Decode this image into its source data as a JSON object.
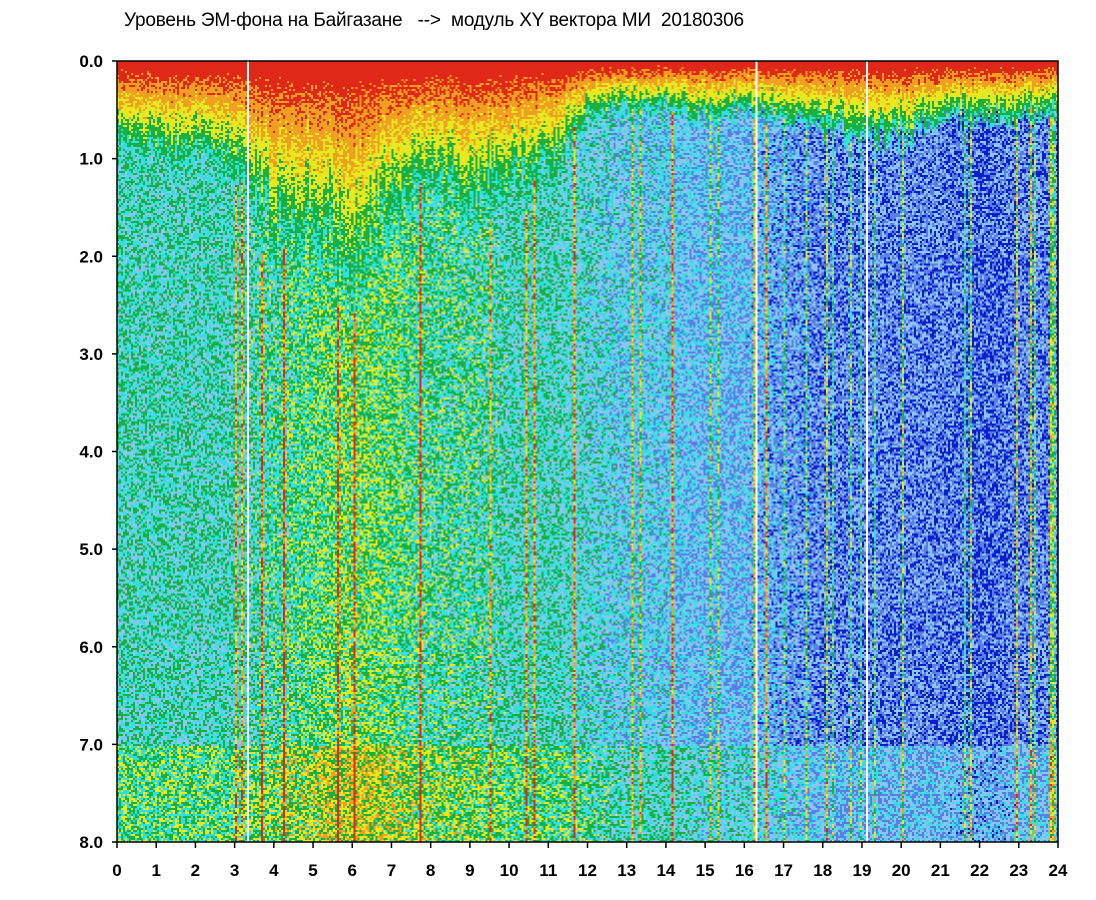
{
  "chart_data": {
    "type": "heatmap",
    "title": "Уровень ЭМ-фона на Байгазане   -->  модуль XY вектора МИ  20180306",
    "xlabel": "",
    "ylabel": "",
    "xlim": [
      0,
      24
    ],
    "ylim": [
      0,
      8
    ],
    "y_inverted": true,
    "x_ticks": [
      "0",
      "1",
      "2",
      "3",
      "4",
      "5",
      "6",
      "7",
      "8",
      "9",
      "10",
      "11",
      "12",
      "13",
      "14",
      "15",
      "16",
      "17",
      "18",
      "19",
      "20",
      "21",
      "22",
      "23",
      "24"
    ],
    "y_ticks": [
      "0.0",
      "1.0",
      "2.0",
      "3.0",
      "4.0",
      "5.0",
      "6.0",
      "7.0",
      "8.0"
    ],
    "grid": false,
    "color_scale": [
      "#0a1ecc",
      "#5a7ee8",
      "#8ec4f0",
      "#2ee0e0",
      "#18b040",
      "#e8e820",
      "#f0a020",
      "#e02818"
    ],
    "hours": [
      0,
      1,
      2,
      3,
      4,
      5,
      6,
      7,
      8,
      9,
      10,
      11,
      12,
      13,
      14,
      15,
      16,
      17,
      18,
      19,
      20,
      21,
      22,
      23,
      24
    ],
    "high_level_band_depth": [
      0.9,
      1.0,
      1.0,
      1.1,
      1.9,
      1.9,
      2.3,
      1.6,
      1.3,
      1.5,
      1.4,
      1.2,
      0.6,
      0.5,
      0.5,
      0.6,
      0.5,
      0.6,
      0.7,
      0.8,
      0.8,
      0.6,
      0.6,
      0.6,
      0.5
    ],
    "background_level": [
      0.45,
      0.45,
      0.45,
      0.45,
      0.5,
      0.55,
      0.6,
      0.55,
      0.5,
      0.5,
      0.45,
      0.45,
      0.4,
      0.35,
      0.35,
      0.3,
      0.3,
      0.25,
      0.2,
      0.2,
      0.2,
      0.2,
      0.15,
      0.2,
      0.2
    ],
    "gaps_at_hours": [
      3.3,
      16.3,
      19.1
    ]
  }
}
